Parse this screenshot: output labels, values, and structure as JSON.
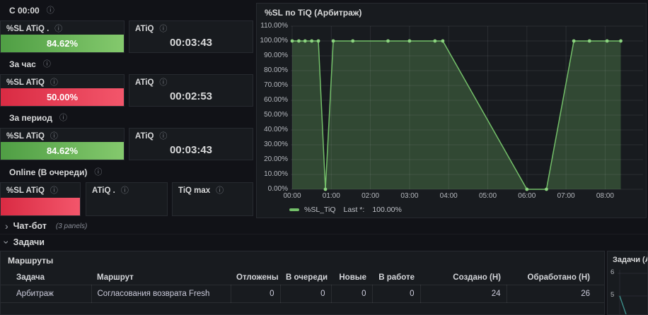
{
  "colors": {
    "page_bg": "#111217",
    "panel_bg": "#181b1f",
    "gauge_green_start": "#4f9e44",
    "gauge_green_end": "#84c96d",
    "gauge_red_start": "#d92b43",
    "gauge_red_end": "#f3566b",
    "chart_line": "#73bf69",
    "chart_fill": "rgba(115,191,105,0.28)",
    "chart_point": "#8bd37f",
    "mini_line": "#3d8f8a"
  },
  "info_icon_glyph": "ⓘ",
  "sections": [
    {
      "label": "С 00:00",
      "panels": [
        {
          "title": "%SL ATiQ .",
          "kind": "bar",
          "value": "84.62%",
          "color": "green"
        },
        {
          "title": "ATiQ",
          "kind": "stat",
          "value": "00:03:43"
        }
      ]
    },
    {
      "label": "За час",
      "panels": [
        {
          "title": "%SL ATiQ",
          "kind": "bar",
          "value": "50.00%",
          "color": "red"
        },
        {
          "title": "ATiQ",
          "kind": "stat",
          "value": "00:02:53"
        }
      ]
    },
    {
      "label": "За период",
      "panels": [
        {
          "title": "%SL ATiQ",
          "kind": "bar",
          "value": "84.62%",
          "color": "green"
        },
        {
          "title": "ATiQ",
          "kind": "stat",
          "value": "00:03:43"
        }
      ]
    },
    {
      "label": "Online (В очереди)",
      "panels": [
        {
          "title": "%SL ATiQ",
          "kind": "bar",
          "value": "",
          "color": "red"
        },
        {
          "title": "ATiQ .",
          "kind": "empty",
          "value": ""
        },
        {
          "title": "TiQ max",
          "kind": "empty",
          "value": ""
        }
      ]
    }
  ],
  "chart_data": [
    {
      "type": "area",
      "title": "%SL по TiQ (Арбитраж)",
      "series": [
        {
          "name": "%SL_TiQ",
          "points": [
            [
              0,
              100
            ],
            [
              0.17,
              100
            ],
            [
              0.33,
              100
            ],
            [
              0.5,
              100
            ],
            [
              0.67,
              100
            ],
            [
              0.85,
              0
            ],
            [
              1.05,
              100
            ],
            [
              1.55,
              100
            ],
            [
              2.45,
              100
            ],
            [
              3.0,
              100
            ],
            [
              3.65,
              100
            ],
            [
              3.85,
              100
            ],
            [
              6.0,
              0
            ],
            [
              6.5,
              0
            ],
            [
              7.2,
              100
            ],
            [
              7.6,
              100
            ],
            [
              8.05,
              100
            ],
            [
              8.4,
              100
            ]
          ]
        }
      ],
      "ylim": [
        0,
        110
      ],
      "ytick_step": 10,
      "ytick_suffix": ".00%",
      "xlim": [
        0,
        9
      ],
      "xticks": [
        0,
        1,
        2,
        3,
        4,
        5,
        6,
        7,
        8
      ],
      "xtick_labels": [
        "00:00",
        "01:00",
        "02:00",
        "03:00",
        "04:00",
        "05:00",
        "06:00",
        "07:00",
        "08:00"
      ],
      "grid": true,
      "legend": {
        "position": "bottom",
        "name": "%SL_TiQ",
        "stat_label": "Last *:",
        "stat_value": "100.00%"
      }
    },
    {
      "type": "line",
      "title": "Задачи (Арб",
      "visible_yticks": [
        "6",
        "5"
      ],
      "points": [
        [
          0,
          5
        ],
        [
          0.3,
          4.1
        ]
      ]
    }
  ],
  "rows": {
    "chatbot": {
      "label": "Чат-бот",
      "meta": "(3 panels)",
      "collapsed": true
    },
    "tasks": {
      "label": "Задачи",
      "collapsed": false
    }
  },
  "routes_table": {
    "title": "Маршруты",
    "columns": [
      "Задача",
      "Маршрут",
      "Отложены",
      "В очереди",
      "Новые",
      "В работе",
      "Создано (Н)",
      "Обработано (Н)"
    ],
    "rows": [
      [
        "Арбитраж",
        "Согласования возврата Fresh",
        "0",
        "0",
        "0",
        "0",
        "24",
        "26"
      ]
    ]
  }
}
